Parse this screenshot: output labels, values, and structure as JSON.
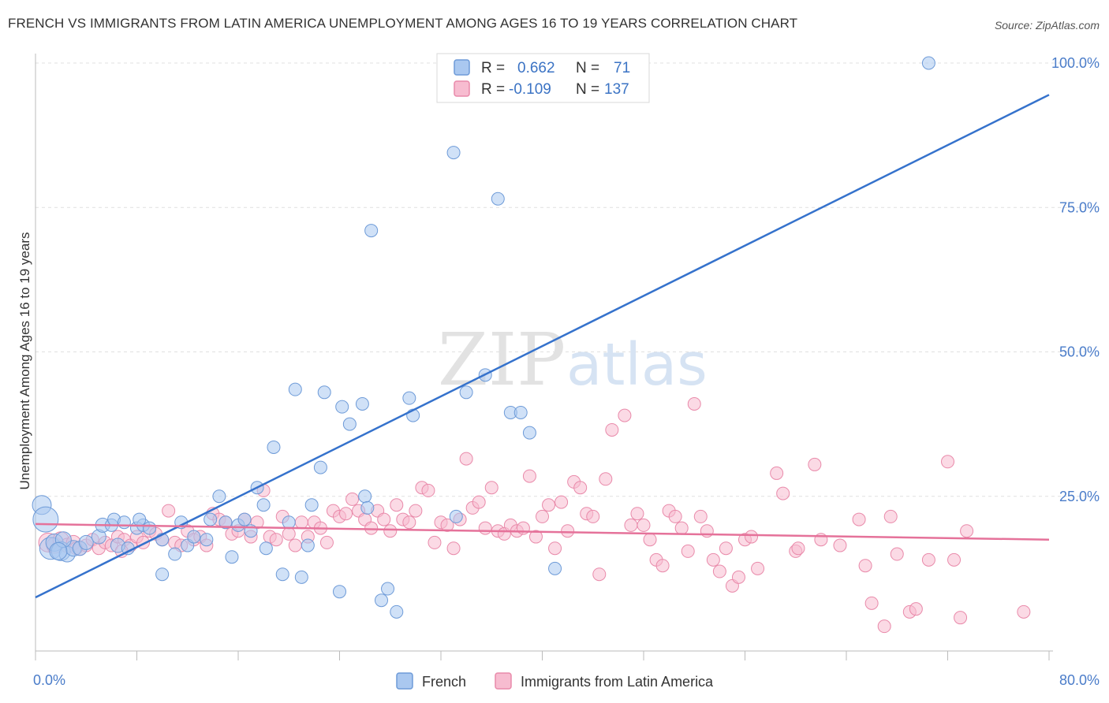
{
  "title": "FRENCH VS IMMIGRANTS FROM LATIN AMERICA UNEMPLOYMENT AMONG AGES 16 TO 19 YEARS CORRELATION CHART",
  "source": "Source: ZipAtlas.com",
  "watermark": {
    "zip": "ZIP",
    "atlas": "atlas"
  },
  "legend": {
    "r_label": "R =",
    "n_label": "N =",
    "rows": [
      {
        "r": "0.662",
        "n": "71",
        "color": "#aac8f0",
        "stroke": "#6e9bd8"
      },
      {
        "r": "-0.109",
        "n": "137",
        "color": "#f7bcd0",
        "stroke": "#e98aaa"
      }
    ]
  },
  "chart_data": {
    "type": "scatter",
    "title": "FRENCH VS IMMIGRANTS FROM LATIN AMERICA UNEMPLOYMENT AMONG AGES 16 TO 19 YEARS CORRELATION CHART",
    "xlabel": "",
    "ylabel": "Unemployment Among Ages 16 to 19 years",
    "xlim": [
      0,
      80
    ],
    "ylim": [
      0,
      100
    ],
    "x_tick_labels": [
      "0.0%",
      "80.0%"
    ],
    "y_tick_labels": [
      "25.0%",
      "50.0%",
      "75.0%",
      "100.0%"
    ],
    "y_ticks": [
      25,
      50,
      75,
      100
    ],
    "grid": true,
    "legend_position": "top-center",
    "series": [
      {
        "name": "French",
        "color": "#aac8f0",
        "stroke": "#6e9bd8",
        "line_color": "#3572cc",
        "trend": [
          [
            0,
            7.5
          ],
          [
            80,
            94.5
          ]
        ],
        "points": [
          [
            0.5,
            23.5,
            22
          ],
          [
            0.8,
            21,
            30
          ],
          [
            1.2,
            16,
            26
          ],
          [
            1.5,
            17,
            20
          ],
          [
            2,
            15.5,
            22
          ],
          [
            2.5,
            15,
            18
          ],
          [
            3,
            16,
            18
          ],
          [
            3.5,
            16,
            16
          ],
          [
            4,
            17,
            16
          ],
          [
            5,
            18,
            16
          ],
          [
            5.3,
            20,
            16
          ],
          [
            6,
            20,
            14
          ],
          [
            6.5,
            16.5,
            16
          ],
          [
            6.2,
            21,
            14
          ],
          [
            7,
            20.5,
            14
          ],
          [
            8,
            19.5,
            14
          ],
          [
            8.5,
            20,
            14
          ],
          [
            9,
            19.5,
            14
          ],
          [
            10,
            17.5,
            14
          ],
          [
            11,
            15,
            14
          ],
          [
            10,
            11.5,
            14
          ],
          [
            11.5,
            20.5,
            14
          ],
          [
            12,
            16.5,
            14
          ],
          [
            13.5,
            17.5,
            14
          ],
          [
            13.8,
            21,
            14
          ],
          [
            15,
            20.5,
            14
          ],
          [
            14.5,
            25,
            14
          ],
          [
            15.5,
            14.5,
            14
          ],
          [
            16,
            20,
            14
          ],
          [
            17,
            19,
            14
          ],
          [
            17.5,
            26.5,
            14
          ],
          [
            18,
            23.5,
            14
          ],
          [
            18.2,
            16,
            14
          ],
          [
            18.8,
            33.5,
            14
          ],
          [
            19.5,
            11.5,
            14
          ],
          [
            20,
            20.5,
            14
          ],
          [
            20.5,
            43.5,
            14
          ],
          [
            21,
            11,
            14
          ],
          [
            21.5,
            16.5,
            14
          ],
          [
            21.8,
            23.5,
            14
          ],
          [
            22.5,
            30,
            14
          ],
          [
            22.8,
            43,
            14
          ],
          [
            24,
            8.5,
            14
          ],
          [
            24.2,
            40.5,
            14
          ],
          [
            24.8,
            37.5,
            14
          ],
          [
            25.8,
            41,
            14
          ],
          [
            26,
            25,
            14
          ],
          [
            26.5,
            71,
            14
          ],
          [
            27.3,
            7,
            14
          ],
          [
            27.8,
            9,
            14
          ],
          [
            28.5,
            5,
            14
          ],
          [
            29.5,
            42,
            14
          ],
          [
            29.8,
            39,
            14
          ],
          [
            33,
            84.5,
            14
          ],
          [
            34,
            43,
            14
          ],
          [
            35.5,
            46,
            14
          ],
          [
            36.5,
            76.5,
            14
          ],
          [
            37.5,
            39.5,
            14
          ],
          [
            38.3,
            39.5,
            14
          ],
          [
            39,
            36,
            14
          ],
          [
            41,
            12.5,
            14
          ],
          [
            42,
            100,
            14
          ],
          [
            33.2,
            21.5,
            14
          ],
          [
            26.2,
            23,
            14
          ],
          [
            16.5,
            21,
            14
          ],
          [
            12.5,
            18,
            14
          ],
          [
            8.2,
            21,
            14
          ],
          [
            7.3,
            16,
            14
          ],
          [
            70.5,
            100,
            14
          ],
          [
            2.2,
            17.5,
            18
          ],
          [
            1.8,
            15.5,
            20
          ]
        ]
      },
      {
        "name": "Immigrants from Latin America",
        "color": "#f7bcd0",
        "stroke": "#e98aaa",
        "line_color": "#e5729a",
        "trend": [
          [
            0,
            20.2
          ],
          [
            80,
            17.5
          ]
        ],
        "points": [
          [
            1,
            17,
            22
          ],
          [
            1.5,
            16.5,
            18
          ],
          [
            2,
            17.5,
            18
          ],
          [
            2.5,
            16.5,
            16
          ],
          [
            3,
            17,
            16
          ],
          [
            3.5,
            16,
            16
          ],
          [
            4,
            16.5,
            14
          ],
          [
            4.5,
            17.5,
            14
          ],
          [
            5,
            16,
            14
          ],
          [
            5.5,
            17,
            14
          ],
          [
            6,
            16.5,
            14
          ],
          [
            6.5,
            18,
            14
          ],
          [
            7,
            17.5,
            14
          ],
          [
            7.5,
            16.5,
            14
          ],
          [
            8,
            18,
            14
          ],
          [
            8.5,
            17,
            14
          ],
          [
            9,
            19,
            14
          ],
          [
            9.5,
            18.5,
            14
          ],
          [
            10,
            17.5,
            14
          ],
          [
            10.5,
            22.5,
            14
          ],
          [
            11,
            17,
            14
          ],
          [
            11.5,
            16.5,
            14
          ],
          [
            12,
            19,
            14
          ],
          [
            12.5,
            17.5,
            14
          ],
          [
            13,
            18,
            14
          ],
          [
            13.5,
            16.5,
            14
          ],
          [
            14,
            22,
            14
          ],
          [
            14.5,
            21,
            14
          ],
          [
            15,
            20.5,
            14
          ],
          [
            15.5,
            18.5,
            14
          ],
          [
            16,
            19,
            14
          ],
          [
            16.5,
            21,
            14
          ],
          [
            17,
            18,
            14
          ],
          [
            17.5,
            20.5,
            14
          ],
          [
            18,
            26,
            14
          ],
          [
            18.5,
            18,
            14
          ],
          [
            19,
            17.5,
            14
          ],
          [
            19.5,
            21.5,
            14
          ],
          [
            20,
            18.5,
            14
          ],
          [
            20.5,
            16.5,
            14
          ],
          [
            21,
            20.5,
            14
          ],
          [
            21.5,
            18,
            14
          ],
          [
            22,
            20.5,
            14
          ],
          [
            22.5,
            19.5,
            14
          ],
          [
            23,
            17,
            14
          ],
          [
            23.5,
            22.5,
            14
          ],
          [
            24,
            21.5,
            14
          ],
          [
            24.5,
            22,
            14
          ],
          [
            25,
            24.5,
            14
          ],
          [
            25.5,
            22.5,
            14
          ],
          [
            26,
            21,
            14
          ],
          [
            26.5,
            19.5,
            14
          ],
          [
            27,
            22.5,
            14
          ],
          [
            27.5,
            21,
            14
          ],
          [
            28,
            19,
            14
          ],
          [
            28.5,
            23.5,
            14
          ],
          [
            29,
            21,
            14
          ],
          [
            29.5,
            20.5,
            14
          ],
          [
            30,
            22.5,
            14
          ],
          [
            30.5,
            26.5,
            14
          ],
          [
            31,
            26,
            14
          ],
          [
            31.5,
            17,
            14
          ],
          [
            32,
            20.5,
            14
          ],
          [
            32.5,
            20,
            14
          ],
          [
            33,
            16,
            14
          ],
          [
            33.5,
            21,
            14
          ],
          [
            34,
            31.5,
            14
          ],
          [
            34.5,
            23,
            14
          ],
          [
            35,
            24,
            14
          ],
          [
            35.5,
            19.5,
            14
          ],
          [
            36,
            26.5,
            14
          ],
          [
            36.5,
            19,
            14
          ],
          [
            37,
            18.5,
            14
          ],
          [
            37.5,
            20,
            14
          ],
          [
            38,
            19,
            14
          ],
          [
            38.5,
            19.5,
            14
          ],
          [
            39,
            28.5,
            14
          ],
          [
            39.5,
            18,
            14
          ],
          [
            40,
            21.5,
            14
          ],
          [
            40.5,
            23.5,
            14
          ],
          [
            41,
            16,
            14
          ],
          [
            41.5,
            24,
            14
          ],
          [
            42,
            19,
            14
          ],
          [
            42.5,
            27.5,
            14
          ],
          [
            43,
            26.5,
            14
          ],
          [
            43.5,
            22,
            14
          ],
          [
            44,
            21.5,
            14
          ],
          [
            44.5,
            11.5,
            14
          ],
          [
            45,
            28,
            14
          ],
          [
            45.5,
            36.5,
            14
          ],
          [
            46.5,
            39,
            14
          ],
          [
            47,
            20,
            14
          ],
          [
            47.5,
            22,
            14
          ],
          [
            48,
            20,
            14
          ],
          [
            48.5,
            17.5,
            14
          ],
          [
            49,
            14,
            14
          ],
          [
            49.5,
            13,
            14
          ],
          [
            50,
            22.5,
            14
          ],
          [
            50.5,
            21.5,
            14
          ],
          [
            51,
            19.5,
            14
          ],
          [
            51.5,
            15.5,
            14
          ],
          [
            52,
            41,
            14
          ],
          [
            52.5,
            21.5,
            14
          ],
          [
            53,
            19,
            14
          ],
          [
            53.5,
            14,
            14
          ],
          [
            54,
            12,
            14
          ],
          [
            54.5,
            16,
            14
          ],
          [
            55,
            9.5,
            14
          ],
          [
            55.5,
            11,
            14
          ],
          [
            56,
            17.5,
            14
          ],
          [
            56.5,
            18,
            14
          ],
          [
            57,
            12.5,
            14
          ],
          [
            58.5,
            29,
            14
          ],
          [
            59,
            25.5,
            14
          ],
          [
            60,
            15.5,
            14
          ],
          [
            60.2,
            16,
            14
          ],
          [
            61.5,
            30.5,
            14
          ],
          [
            62,
            17.5,
            14
          ],
          [
            63.5,
            16.5,
            14
          ],
          [
            65,
            21,
            14
          ],
          [
            65.5,
            13,
            14
          ],
          [
            66,
            6.5,
            14
          ],
          [
            67,
            2.5,
            14
          ],
          [
            67.5,
            21.5,
            14
          ],
          [
            68,
            15,
            14
          ],
          [
            69,
            5,
            14
          ],
          [
            69.5,
            5.5,
            14
          ],
          [
            70.5,
            14,
            14
          ],
          [
            72,
            31,
            14
          ],
          [
            72.5,
            14,
            14
          ],
          [
            73,
            4,
            14
          ],
          [
            73.5,
            19,
            14
          ],
          [
            78,
            5,
            14
          ],
          [
            3.2,
            16,
            14
          ],
          [
            6.8,
            15.5,
            14
          ]
        ]
      }
    ]
  },
  "bottom_legend": [
    "French",
    "Immigrants from Latin America"
  ]
}
